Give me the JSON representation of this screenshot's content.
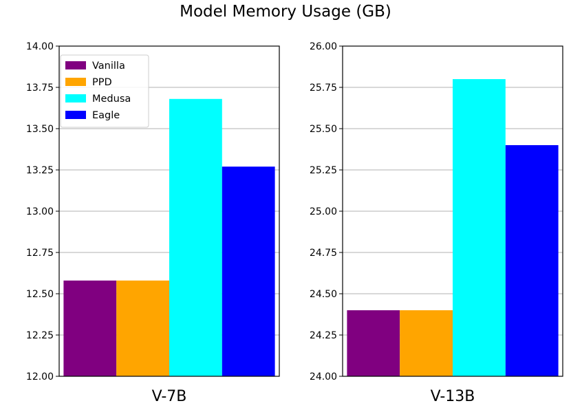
{
  "title": "Model Memory Usage (GB)",
  "legend": {
    "placement": "top-left",
    "entries": [
      {
        "name": "Vanilla",
        "color": "#800080"
      },
      {
        "name": "PPD",
        "color": "#FFA500"
      },
      {
        "name": "Medusa",
        "color": "#00FFFF"
      },
      {
        "name": "Eagle",
        "color": "#0000FF"
      }
    ]
  },
  "chart_data": [
    {
      "type": "bar",
      "categories": [
        "V-7B"
      ],
      "series": [
        {
          "name": "Vanilla",
          "values": [
            12.58
          ]
        },
        {
          "name": "PPD",
          "values": [
            12.58
          ]
        },
        {
          "name": "Medusa",
          "values": [
            13.68
          ]
        },
        {
          "name": "Eagle",
          "values": [
            13.27
          ]
        }
      ],
      "ylim": [
        12.0,
        14.0
      ],
      "yticks": [
        "12.00",
        "12.25",
        "12.50",
        "12.75",
        "13.00",
        "13.25",
        "13.50",
        "13.75",
        "14.00"
      ],
      "grid": "y"
    },
    {
      "type": "bar",
      "categories": [
        "V-13B"
      ],
      "series": [
        {
          "name": "Vanilla",
          "values": [
            24.4
          ]
        },
        {
          "name": "PPD",
          "values": [
            24.4
          ]
        },
        {
          "name": "Medusa",
          "values": [
            25.8
          ]
        },
        {
          "name": "Eagle",
          "values": [
            25.4
          ]
        }
      ],
      "ylim": [
        24.0,
        26.0
      ],
      "yticks": [
        "24.00",
        "24.25",
        "24.50",
        "24.75",
        "25.00",
        "25.25",
        "25.50",
        "25.75",
        "26.00"
      ],
      "grid": "y"
    }
  ]
}
